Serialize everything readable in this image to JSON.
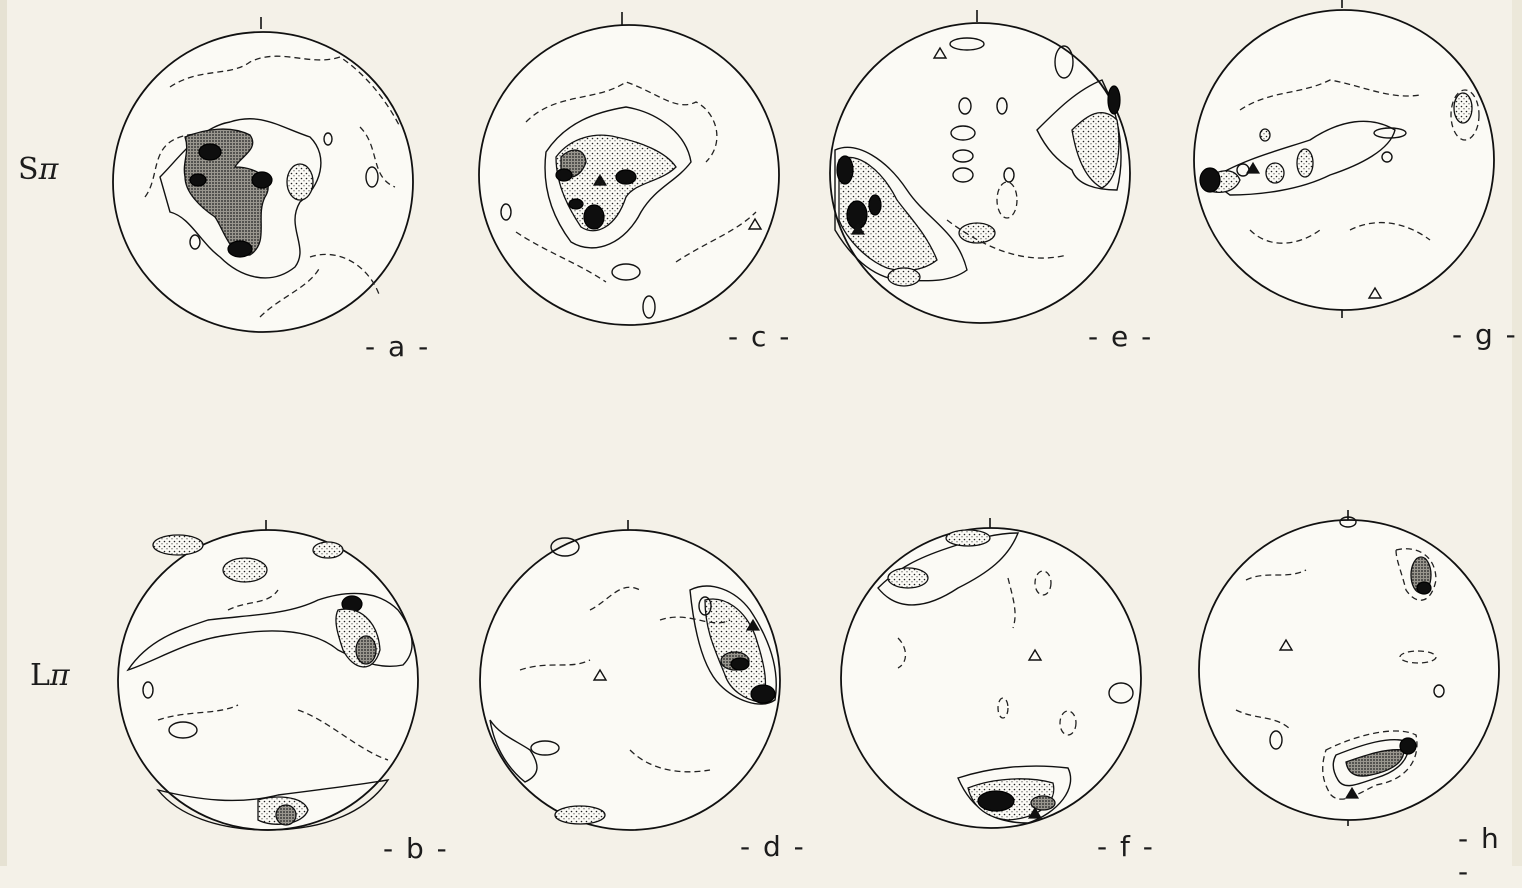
{
  "figure": {
    "row_labels": [
      {
        "id": "top",
        "letter": "S",
        "symbol": "π"
      },
      {
        "id": "bottom",
        "letter": "L",
        "symbol": "π"
      }
    ],
    "panels": [
      {
        "id": "a",
        "label": "- a -"
      },
      {
        "id": "c",
        "label": "- c -"
      },
      {
        "id": "e",
        "label": "- e -"
      },
      {
        "id": "g",
        "label": "- g -"
      },
      {
        "id": "b",
        "label": "- b -"
      },
      {
        "id": "d",
        "label": "- d -"
      },
      {
        "id": "f",
        "label": "- f -"
      },
      {
        "id": "h",
        "label": "- h -"
      }
    ]
  }
}
